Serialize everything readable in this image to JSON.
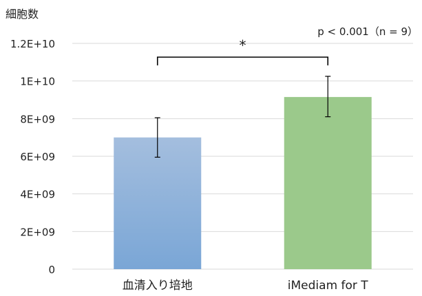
{
  "chart_data": {
    "type": "bar",
    "ylabel": "細胞数",
    "categories": [
      "血清入り培地",
      "iMediam for T"
    ],
    "values": [
      7000000000.0,
      9150000000.0
    ],
    "error_bars": [
      {
        "low": 5950000000.0,
        "high": 8050000000.0
      },
      {
        "low": 8100000000.0,
        "high": 10250000000.0
      }
    ],
    "bar_colors": [
      {
        "top": "#a4bede",
        "bottom": "#7aa6d6"
      },
      {
        "top": "#9bc98b",
        "bottom": "#9bc98b"
      }
    ],
    "ylim": [
      0,
      12000000000.0
    ],
    "yticks": [
      0,
      2000000000.0,
      4000000000.0,
      6000000000.0,
      8000000000.0,
      10000000000.0,
      12000000000.0
    ],
    "ytick_labels": [
      "0",
      "2E+09",
      "4E+09",
      "6E+09",
      "8E+09",
      "1E+10",
      "1.2E+10"
    ],
    "grid": true,
    "annotation": {
      "significance_mark": "*",
      "stats_text": "p < 0.001（n = 9）"
    }
  }
}
